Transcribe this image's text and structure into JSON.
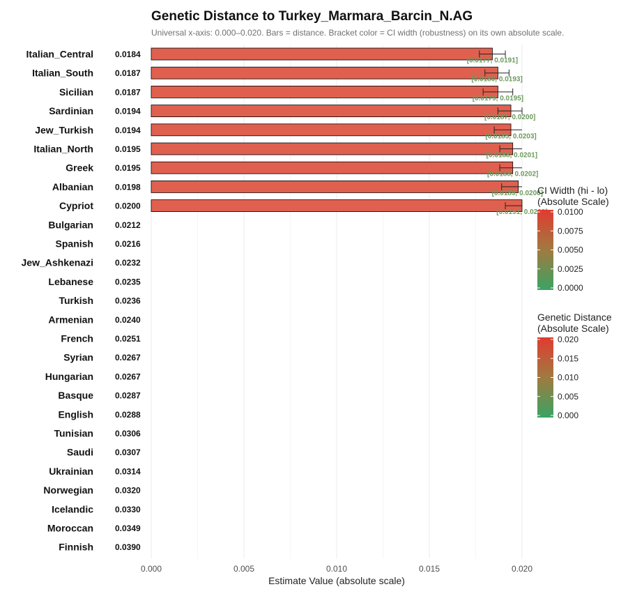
{
  "chart_data": {
    "type": "bar",
    "orientation": "horizontal",
    "title": "Genetic Distance to Turkey_Marmara_Barcin_N.AG",
    "subtitle": "Universal x-axis: 0.000–0.020. Bars = distance. Bracket color = CI width (robustness) on its own absolute scale.",
    "xlabel": "Estimate Value (absolute scale)",
    "xlim": [
      0,
      0.02
    ],
    "xticks": [
      "0.000",
      "0.005",
      "0.010",
      "0.015",
      "0.020"
    ],
    "grid": true,
    "categories": [
      "Italian_Central",
      "Italian_South",
      "Sicilian",
      "Sardinian",
      "Jew_Turkish",
      "Italian_North",
      "Greek",
      "Albanian",
      "Cypriot",
      "Bulgarian",
      "Spanish",
      "Jew_Ashkenazi",
      "Lebanese",
      "Turkish",
      "Armenian",
      "French",
      "Syrian",
      "Hungarian",
      "Basque",
      "English",
      "Tunisian",
      "Saudi",
      "Ukrainian",
      "Norwegian",
      "Icelandic",
      "Moroccan",
      "Finnish"
    ],
    "values": [
      0.0184,
      0.0187,
      0.0187,
      0.0194,
      0.0194,
      0.0195,
      0.0195,
      0.0198,
      0.02,
      0.0212,
      0.0216,
      0.0232,
      0.0235,
      0.0236,
      0.024,
      0.0251,
      0.0267,
      0.0267,
      0.0287,
      0.0288,
      0.0306,
      0.0307,
      0.0314,
      0.032,
      0.033,
      0.0349,
      0.039
    ],
    "value_labels": [
      "0.0184",
      "0.0187",
      "0.0187",
      "0.0194",
      "0.0194",
      "0.0195",
      "0.0195",
      "0.0198",
      "0.0200",
      "0.0212",
      "0.0216",
      "0.0232",
      "0.0235",
      "0.0236",
      "0.0240",
      "0.0251",
      "0.0267",
      "0.0267",
      "0.0287",
      "0.0288",
      "0.0306",
      "0.0307",
      "0.0314",
      "0.0320",
      "0.0330",
      "0.0349",
      "0.0390"
    ],
    "ci": [
      {
        "lo": 0.0177,
        "hi": 0.0191,
        "label": "[0.0177, 0.0191]"
      },
      {
        "lo": 0.018,
        "hi": 0.0193,
        "label": "[0.0180, 0.0193]"
      },
      {
        "lo": 0.0179,
        "hi": 0.0195,
        "label": "[0.0179, 0.0195]"
      },
      {
        "lo": 0.0187,
        "hi": 0.02,
        "label": "[0.0187, 0.0200]"
      },
      {
        "lo": 0.0185,
        "hi": 0.0203,
        "label": "[0.0185, 0.0203]"
      },
      {
        "lo": 0.0188,
        "hi": 0.0201,
        "label": "[0.0188, 0.0201]"
      },
      {
        "lo": 0.0188,
        "hi": 0.0202,
        "label": "[0.0188, 0.0202]"
      },
      {
        "lo": 0.0189,
        "hi": 0.0206,
        "label": "[0.0189, 0.0206]"
      },
      {
        "lo": 0.0191,
        "hi": 0.0209,
        "label": "[0.0191, 0.0209]"
      }
    ],
    "legends": [
      {
        "title_lines": [
          "CI Width (hi - lo)",
          "(Absolute Scale)"
        ],
        "ticks": [
          "0.0100",
          "0.0075",
          "0.0050",
          "0.0025",
          "0.0000"
        ],
        "color_high": "#e03c31",
        "color_mid": "#a07a40",
        "color_low": "#3aa364"
      },
      {
        "title_lines": [
          "Genetic Distance",
          "(Absolute Scale)"
        ],
        "ticks": [
          "0.020",
          "0.015",
          "0.010",
          "0.005",
          "0.000"
        ],
        "color_high": "#e03c31",
        "color_mid": "#a07a40",
        "color_low": "#3aa364"
      }
    ],
    "legend_position": "right",
    "bar_color": "#e0604f",
    "bar_outline": "#000000"
  }
}
